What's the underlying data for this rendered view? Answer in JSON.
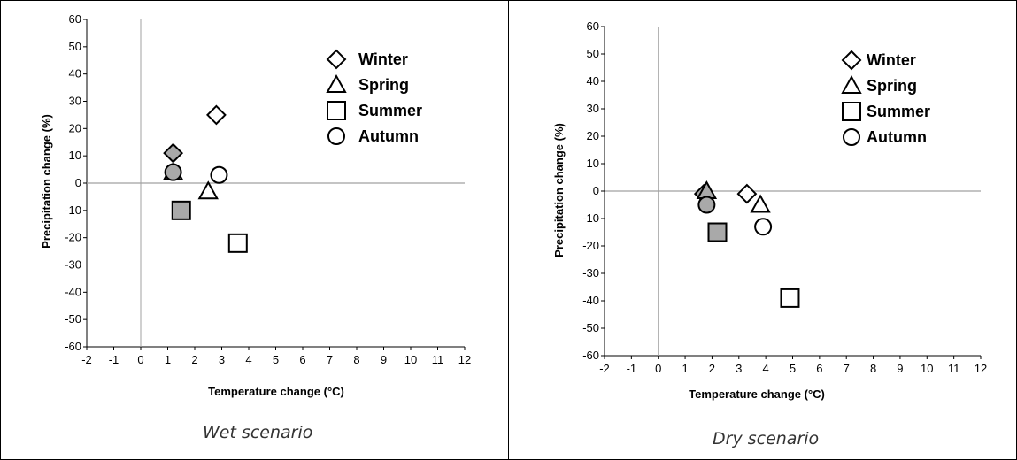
{
  "chart_data": [
    {
      "type": "scatter",
      "caption": "Wet scenario",
      "xlabel": "Temperature change (°C)",
      "ylabel": "Precipitation change (%)",
      "xlim": [
        -2,
        12
      ],
      "ylim": [
        -60,
        60
      ],
      "x_ticks": [
        "-2",
        "-1",
        "0",
        "1",
        "2",
        "3",
        "4",
        "5",
        "6",
        "7",
        "8",
        "9",
        "10",
        "11",
        "12"
      ],
      "y_ticks": [
        "60",
        "50",
        "40",
        "30",
        "20",
        "10",
        "0",
        "-10",
        "-20",
        "-30",
        "-40",
        "-50",
        "-60"
      ],
      "legend": [
        "Winter",
        "Spring",
        "Summer",
        "Autumn"
      ],
      "legend_position": "top-right",
      "points": [
        {
          "season": "Winter",
          "x": 1.2,
          "y": 11,
          "fill": "gray"
        },
        {
          "season": "Winter",
          "x": 2.8,
          "y": 25,
          "fill": "white"
        },
        {
          "season": "Spring",
          "x": 1.2,
          "y": 4,
          "fill": "gray"
        },
        {
          "season": "Spring",
          "x": 2.5,
          "y": -3,
          "fill": "white"
        },
        {
          "season": "Summer",
          "x": 1.5,
          "y": -10,
          "fill": "gray"
        },
        {
          "season": "Summer",
          "x": 3.6,
          "y": -22,
          "fill": "white"
        },
        {
          "season": "Autumn",
          "x": 1.2,
          "y": 4,
          "fill": "gray"
        },
        {
          "season": "Autumn",
          "x": 2.9,
          "y": 3,
          "fill": "white"
        }
      ]
    },
    {
      "type": "scatter",
      "caption": "Dry scenario",
      "xlabel": "Temperature change (°C)",
      "ylabel": "Precipitation change (%)",
      "xlim": [
        -2,
        12
      ],
      "ylim": [
        -60,
        60
      ],
      "x_ticks": [
        "-2",
        "-1",
        "0",
        "1",
        "2",
        "3",
        "4",
        "5",
        "6",
        "7",
        "8",
        "9",
        "10",
        "11",
        "12"
      ],
      "y_ticks": [
        "60",
        "50",
        "40",
        "30",
        "20",
        "10",
        "0",
        "-10",
        "-20",
        "-30",
        "-40",
        "-50",
        "-60"
      ],
      "legend": [
        "Winter",
        "Spring",
        "Summer",
        "Autumn"
      ],
      "legend_position": "top-right",
      "points": [
        {
          "season": "Winter",
          "x": 1.7,
          "y": -1,
          "fill": "gray"
        },
        {
          "season": "Winter",
          "x": 3.3,
          "y": -1,
          "fill": "white"
        },
        {
          "season": "Spring",
          "x": 1.8,
          "y": 0,
          "fill": "gray"
        },
        {
          "season": "Spring",
          "x": 3.8,
          "y": -5,
          "fill": "white"
        },
        {
          "season": "Summer",
          "x": 2.2,
          "y": -15,
          "fill": "gray"
        },
        {
          "season": "Summer",
          "x": 4.9,
          "y": -39,
          "fill": "white"
        },
        {
          "season": "Autumn",
          "x": 1.8,
          "y": -5,
          "fill": "gray"
        },
        {
          "season": "Autumn",
          "x": 3.9,
          "y": -13,
          "fill": "white"
        }
      ]
    }
  ],
  "colors": {
    "marker_gray": "#a9a9a9",
    "marker_white": "#ffffff",
    "marker_stroke": "#000000",
    "zero_line": "#a0a0a0",
    "axis": "#000000"
  }
}
